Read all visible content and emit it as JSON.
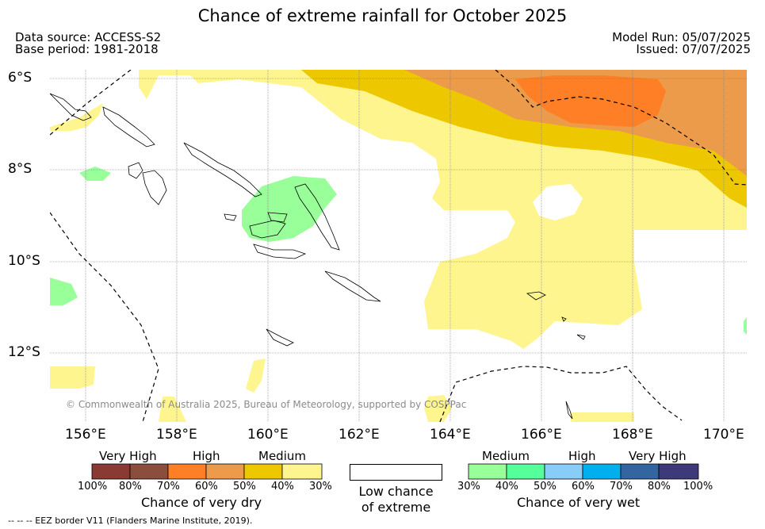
{
  "header": {
    "title": "Chance of extreme rainfall for October 2025",
    "data_source": "Data source: ACCESS-S2",
    "base_period": "Base period: 1981-2018",
    "model_run": "Model Run: 05/07/2025",
    "issued": "Issued: 07/07/2025"
  },
  "map": {
    "lat_labels": [
      "6°S",
      "8°S",
      "10°S",
      "12°S"
    ],
    "lon_labels": [
      "156°E",
      "158°E",
      "160°E",
      "162°E",
      "164°E",
      "166°E",
      "168°E",
      "170°E"
    ],
    "copyright": "© Commonwealth of Australia 2025, Bureau of Meteorology, supported by COSPPac"
  },
  "legend": {
    "dry": {
      "categories": [
        "Very High",
        "High",
        "Medium"
      ],
      "ticks": [
        "100%",
        "80%",
        "70%",
        "60%",
        "50%",
        "40%",
        "30%"
      ],
      "colors": [
        "#8b3a33",
        "#8c4e3c",
        "#ff7f27",
        "#ec9b4a",
        "#edc700",
        "#fff58e"
      ],
      "title": "Chance of very dry"
    },
    "neutral": {
      "line1": "Low chance",
      "line2": "of extreme",
      "color": "#ffffff"
    },
    "wet": {
      "categories": [
        "Medium",
        "High",
        "Very High"
      ],
      "ticks": [
        "30%",
        "40%",
        "50%",
        "60%",
        "70%",
        "80%",
        "100%"
      ],
      "colors": [
        "#99ff99",
        "#55ff99",
        "#88ccf8",
        "#00b0ee",
        "#3366a0",
        "#3e3978"
      ],
      "title": "Chance of very wet"
    }
  },
  "footer": "-- -- -- EEZ border V11 (Flanders Marine Institute, 2019)."
}
